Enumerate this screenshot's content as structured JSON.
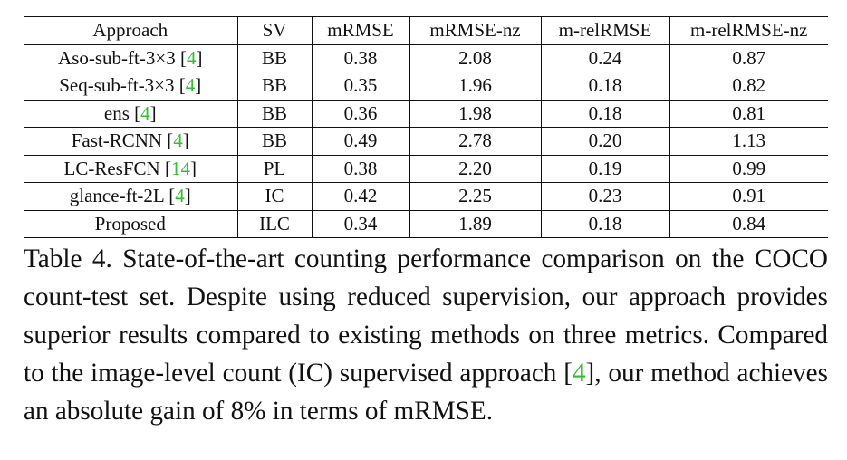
{
  "table": {
    "headers": [
      "Approach",
      "SV",
      "mRMSE",
      "mRMSE-nz",
      "m-relRMSE",
      "m-relRMSE-nz"
    ],
    "rows": [
      {
        "approach": "Aso-sub-ft-3×3",
        "ref": "4",
        "sv": "BB",
        "mRMSE": "0.38",
        "mRMSE_nz": "2.08",
        "m_relRMSE": "0.24",
        "m_relRMSE_nz": "0.87"
      },
      {
        "approach": "Seq-sub-ft-3×3",
        "ref": "4",
        "sv": "BB",
        "mRMSE": "0.35",
        "mRMSE_nz": "1.96",
        "m_relRMSE": "0.18",
        "m_relRMSE_nz": "0.82"
      },
      {
        "approach": "ens",
        "ref": "4",
        "sv": "BB",
        "mRMSE": "0.36",
        "mRMSE_nz": "1.98",
        "m_relRMSE": "0.18",
        "m_relRMSE_nz": "0.81"
      },
      {
        "approach": "Fast-RCNN",
        "ref": "4",
        "sv": "BB",
        "mRMSE": "0.49",
        "mRMSE_nz": "2.78",
        "m_relRMSE": "0.20",
        "m_relRMSE_nz": "1.13"
      },
      {
        "approach": "LC-ResFCN",
        "ref": "14",
        "sv": "PL",
        "mRMSE": "0.38",
        "mRMSE_nz": "2.20",
        "m_relRMSE": "0.19",
        "m_relRMSE_nz": "0.99"
      },
      {
        "approach": "glance-ft-2L",
        "ref": "4",
        "sv": "IC",
        "mRMSE": "0.42",
        "mRMSE_nz": "2.25",
        "m_relRMSE": "0.23",
        "m_relRMSE_nz": "0.91"
      },
      {
        "approach": "Proposed",
        "ref": "",
        "sv": "ILC",
        "mRMSE": "0.34",
        "mRMSE_nz": "1.89",
        "m_relRMSE": "0.18",
        "m_relRMSE_nz": "0.84"
      }
    ]
  },
  "caption": {
    "part1": "Table 4. State-of-the-art counting performance comparison on the COCO count-test set. Despite using reduced supervision, our approach provides superior results compared to existing methods on three metrics. Compared to the image-level count (IC) supervised approach ",
    "ref": "4",
    "part2": ", our method achieves an absolute gain of 8% in terms of mRMSE."
  },
  "colors": {
    "citation": "#2fbf2f",
    "text": "#111111"
  }
}
